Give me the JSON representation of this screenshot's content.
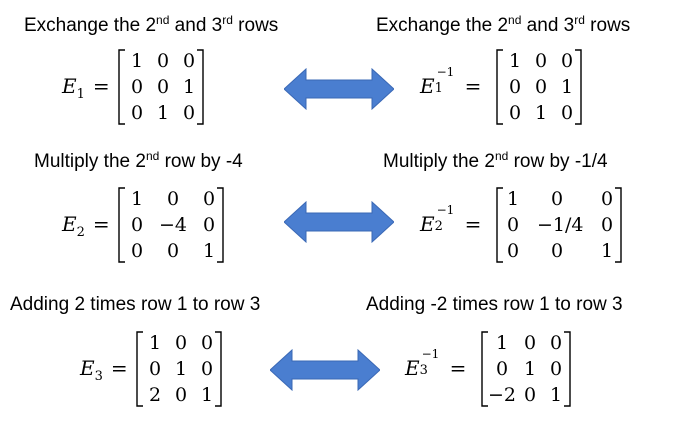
{
  "colors": {
    "arrow": "#4a7ed0",
    "arrow_stroke": "#3a68b5",
    "text": "#000000"
  },
  "rows": [
    {
      "left": {
        "heading": {
          "pre": "Exchange the 2",
          "sup1": "nd",
          "mid": " and 3",
          "sup2": "rd",
          "post": " rows"
        },
        "matrix_name": "E",
        "subscript": "1",
        "inverse": false,
        "matrix": [
          [
            "1",
            "0",
            "0"
          ],
          [
            "0",
            "0",
            "1"
          ],
          [
            "0",
            "1",
            "0"
          ]
        ]
      },
      "right": {
        "heading": {
          "pre": "Exchange the 2",
          "sup1": "nd",
          "mid": " and 3",
          "sup2": "rd",
          "post": " rows"
        },
        "matrix_name": "E",
        "subscript": "1",
        "inverse": true,
        "superscript": "−1",
        "matrix": [
          [
            "1",
            "0",
            "0"
          ],
          [
            "0",
            "0",
            "1"
          ],
          [
            "0",
            "1",
            "0"
          ]
        ]
      }
    },
    {
      "left": {
        "heading": {
          "pre": "Multiply the 2",
          "sup1": "nd",
          "post": " row by -4"
        },
        "matrix_name": "E",
        "subscript": "2",
        "inverse": false,
        "matrix": [
          [
            "1",
            "0",
            "0"
          ],
          [
            "0",
            "−4",
            "0"
          ],
          [
            "0",
            "0",
            "1"
          ]
        ]
      },
      "right": {
        "heading": {
          "pre": "Multiply the 2",
          "sup1": "nd",
          "post": " row by -1/4"
        },
        "matrix_name": "E",
        "subscript": "2",
        "inverse": true,
        "superscript": "−1",
        "matrix": [
          [
            "1",
            "0",
            "0"
          ],
          [
            "0",
            "−1/4",
            "0"
          ],
          [
            "0",
            "0",
            "1"
          ]
        ]
      }
    },
    {
      "left": {
        "heading": {
          "pre": "Adding 2 times row 1 to row 3"
        },
        "matrix_name": "E",
        "subscript": "3",
        "inverse": false,
        "matrix": [
          [
            "1",
            "0",
            "0"
          ],
          [
            "0",
            "1",
            "0"
          ],
          [
            "2",
            "0",
            "1"
          ]
        ]
      },
      "right": {
        "heading": {
          "pre": "Adding -2 times row 1 to row 3"
        },
        "matrix_name": "E",
        "subscript": "3",
        "inverse": true,
        "superscript": "−1",
        "matrix": [
          [
            "1",
            "0",
            "0"
          ],
          [
            "0",
            "1",
            "0"
          ],
          [
            "−2",
            "0",
            "1"
          ]
        ]
      }
    }
  ]
}
